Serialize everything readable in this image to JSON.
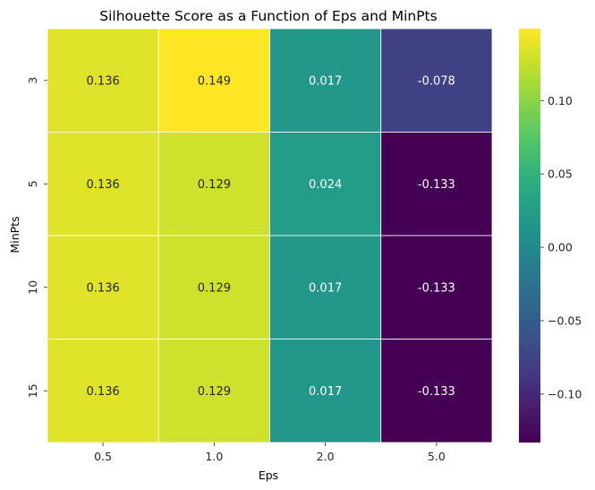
{
  "chart_data": {
    "type": "heatmap",
    "title": "Silhouette Score as a Function of Eps and MinPts",
    "xlabel": "Eps",
    "ylabel": "MinPts",
    "x": [
      "0.5",
      "1.0",
      "2.0",
      "5.0"
    ],
    "y": [
      "3",
      "5",
      "10",
      "15"
    ],
    "values": [
      [
        0.136,
        0.149,
        0.017,
        -0.078
      ],
      [
        0.136,
        0.129,
        0.024,
        -0.133
      ],
      [
        0.136,
        0.129,
        0.017,
        -0.133
      ],
      [
        0.136,
        0.129,
        0.017,
        -0.133
      ]
    ],
    "labels": [
      [
        "0.136",
        "0.149",
        "0.017",
        "-0.078"
      ],
      [
        "0.136",
        "0.129",
        "0.024",
        "-0.133"
      ],
      [
        "0.136",
        "0.129",
        "0.017",
        "-0.133"
      ],
      [
        "0.136",
        "0.129",
        "0.017",
        "-0.133"
      ]
    ],
    "colormap": "viridis",
    "color_range": [
      -0.133,
      0.149
    ],
    "colorbar": {
      "ticks": [
        0.1,
        0.05,
        0.0,
        -0.05,
        -0.1
      ],
      "tick_labels": [
        "0.10",
        "0.05",
        "0.00",
        "−0.05",
        "−0.10"
      ],
      "placement": "right"
    },
    "cell_border_color": "#ffffff"
  }
}
